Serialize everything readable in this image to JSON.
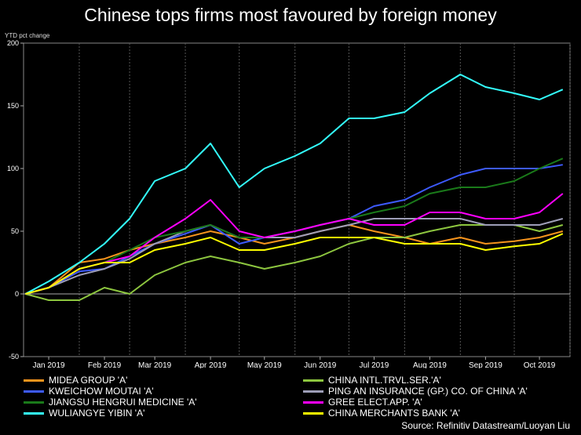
{
  "chart_data": {
    "type": "line",
    "title": "Chinese tops firms most favoured by foreign money",
    "ylabel": "YTD pct change",
    "xlabel": "",
    "ylim": [
      -50,
      200
    ],
    "yticks": [
      -50,
      0,
      50,
      100,
      150,
      200
    ],
    "xlim": [
      "2019-01-01",
      "2019-11-01"
    ],
    "xticks": [
      {
        "date": "2019-01-15",
        "label": "Jan 2019"
      },
      {
        "date": "2019-02-15",
        "label": "Feb 2019"
      },
      {
        "date": "2019-03-15",
        "label": "Mar 2019"
      },
      {
        "date": "2019-04-15",
        "label": "Apr 2019"
      },
      {
        "date": "2019-05-15",
        "label": "May 2019"
      },
      {
        "date": "2019-06-15",
        "label": "Jun 2019"
      },
      {
        "date": "2019-07-15",
        "label": "Jul 2019"
      },
      {
        "date": "2019-08-15",
        "label": "Aug 2019"
      },
      {
        "date": "2019-09-15",
        "label": "Sep 2019"
      },
      {
        "date": "2019-10-15",
        "label": "Oct 2019"
      }
    ],
    "grid": "vertical dotted",
    "x": [
      "2019-01-02",
      "2019-01-15",
      "2019-02-01",
      "2019-02-15",
      "2019-03-01",
      "2019-03-15",
      "2019-04-01",
      "2019-04-15",
      "2019-05-01",
      "2019-05-15",
      "2019-06-01",
      "2019-06-15",
      "2019-07-01",
      "2019-07-15",
      "2019-08-01",
      "2019-08-15",
      "2019-09-01",
      "2019-09-15",
      "2019-10-01",
      "2019-10-15",
      "2019-10-28"
    ],
    "series": [
      {
        "name": "MIDEA GROUP 'A'",
        "color": "#f7941d",
        "values": [
          0,
          5,
          25,
          28,
          35,
          40,
          45,
          50,
          45,
          40,
          45,
          50,
          55,
          50,
          45,
          40,
          45,
          40,
          42,
          45,
          50
        ]
      },
      {
        "name": "CHINA INTL.TRVL.SER.'A'",
        "color": "#8dc63f",
        "values": [
          0,
          -5,
          -5,
          5,
          0,
          15,
          25,
          30,
          25,
          20,
          25,
          30,
          40,
          45,
          45,
          50,
          55,
          55,
          55,
          50,
          55
        ]
      },
      {
        "name": "KWEICHOW MOUTAI 'A'",
        "color": "#3d5afe",
        "values": [
          0,
          5,
          18,
          20,
          30,
          40,
          48,
          55,
          40,
          45,
          50,
          55,
          60,
          70,
          75,
          85,
          95,
          100,
          100,
          100,
          103
        ]
      },
      {
        "name": "PING AN INSURANCE (GP.) CO. OF CHINA 'A'",
        "color": "#9e9eb8",
        "values": [
          0,
          5,
          15,
          20,
          28,
          40,
          50,
          55,
          45,
          45,
          45,
          50,
          55,
          60,
          60,
          60,
          60,
          55,
          55,
          55,
          60
        ]
      },
      {
        "name": "JIANGSU HENGRUI MEDICINE 'A'",
        "color": "#1a7a1a",
        "values": [
          0,
          5,
          20,
          25,
          35,
          45,
          50,
          55,
          45,
          45,
          50,
          55,
          60,
          65,
          70,
          80,
          85,
          85,
          90,
          100,
          108
        ]
      },
      {
        "name": "GREE ELECT.APP. 'A'",
        "color": "#ff00ff",
        "values": [
          0,
          5,
          20,
          25,
          30,
          45,
          60,
          75,
          50,
          45,
          50,
          55,
          60,
          55,
          55,
          65,
          65,
          60,
          60,
          65,
          80
        ]
      },
      {
        "name": "WULIANGYE YIBIN 'A'",
        "color": "#33ffff",
        "values": [
          0,
          10,
          25,
          40,
          60,
          90,
          100,
          120,
          85,
          100,
          110,
          120,
          140,
          140,
          145,
          160,
          175,
          165,
          160,
          155,
          163
        ]
      },
      {
        "name": "CHINA MERCHANTS BANK 'A'",
        "color": "#ffff00",
        "values": [
          0,
          5,
          20,
          25,
          25,
          35,
          40,
          45,
          35,
          35,
          40,
          45,
          45,
          45,
          40,
          40,
          40,
          35,
          38,
          40,
          48
        ]
      }
    ]
  },
  "legend_left": [
    "MIDEA GROUP 'A'",
    "KWEICHOW MOUTAI 'A'",
    "JIANGSU HENGRUI MEDICINE 'A'",
    "WULIANGYE YIBIN 'A'"
  ],
  "legend_right": [
    "CHINA INTL.TRVL.SER.'A'",
    "PING AN INSURANCE (GP.) CO. OF CHINA 'A'",
    "GREE ELECT.APP. 'A'",
    "CHINA MERCHANTS BANK 'A'"
  ],
  "source": "Source: Refinitiv Datastream/Luoyan Liu"
}
